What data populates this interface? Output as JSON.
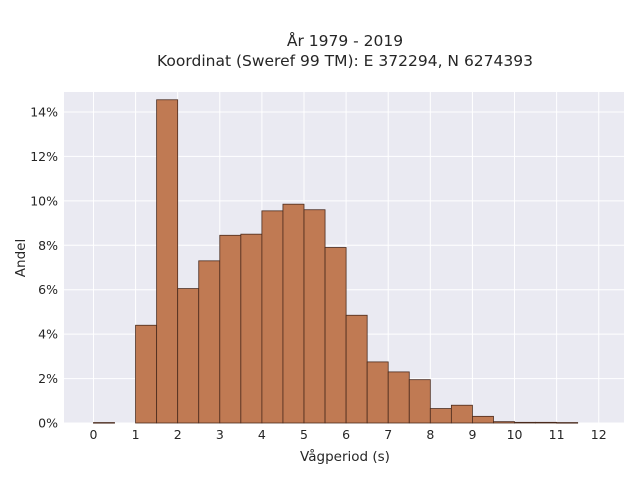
{
  "chart_data": {
    "type": "bar",
    "title_lines": [
      "År 1979 - 2019",
      "Koordinat (Sweref 99 TM): E 372294, N 6274393"
    ],
    "xlabel": "Vågperiod (s)",
    "ylabel": "Andel",
    "xlim": [
      -0.7,
      12.6
    ],
    "ylim": [
      0,
      14.9
    ],
    "x_ticks": [
      0,
      1,
      2,
      3,
      4,
      5,
      6,
      7,
      8,
      9,
      10,
      11,
      12
    ],
    "x_tick_labels": [
      "0",
      "1",
      "2",
      "3",
      "4",
      "5",
      "6",
      "7",
      "8",
      "9",
      "10",
      "11",
      "12"
    ],
    "y_ticks": [
      0,
      2,
      4,
      6,
      8,
      10,
      12,
      14
    ],
    "y_tick_labels": [
      "0%",
      "2%",
      "4%",
      "6%",
      "8%",
      "10%",
      "12%",
      "14%"
    ],
    "bin_width": 0.5,
    "bins": [
      {
        "start": 0.0,
        "value": 0.02
      },
      {
        "start": 1.0,
        "value": 4.4
      },
      {
        "start": 1.5,
        "value": 14.55
      },
      {
        "start": 2.0,
        "value": 6.05
      },
      {
        "start": 2.5,
        "value": 7.3
      },
      {
        "start": 3.0,
        "value": 8.45
      },
      {
        "start": 3.5,
        "value": 8.5
      },
      {
        "start": 4.0,
        "value": 9.55
      },
      {
        "start": 4.5,
        "value": 9.85
      },
      {
        "start": 5.0,
        "value": 9.6
      },
      {
        "start": 5.5,
        "value": 7.9
      },
      {
        "start": 6.0,
        "value": 4.85
      },
      {
        "start": 6.5,
        "value": 2.75
      },
      {
        "start": 7.0,
        "value": 2.3
      },
      {
        "start": 7.5,
        "value": 1.95
      },
      {
        "start": 8.0,
        "value": 0.65
      },
      {
        "start": 8.5,
        "value": 0.8
      },
      {
        "start": 9.0,
        "value": 0.3
      },
      {
        "start": 9.5,
        "value": 0.06
      },
      {
        "start": 10.0,
        "value": 0.03
      },
      {
        "start": 10.5,
        "value": 0.03
      },
      {
        "start": 11.0,
        "value": 0.02
      }
    ],
    "grid": true,
    "colors": {
      "bar_fill": "#c07a53",
      "bar_edge": "#4a2a1c",
      "plot_bg": "#eaeaf2",
      "grid": "#ffffff"
    }
  }
}
